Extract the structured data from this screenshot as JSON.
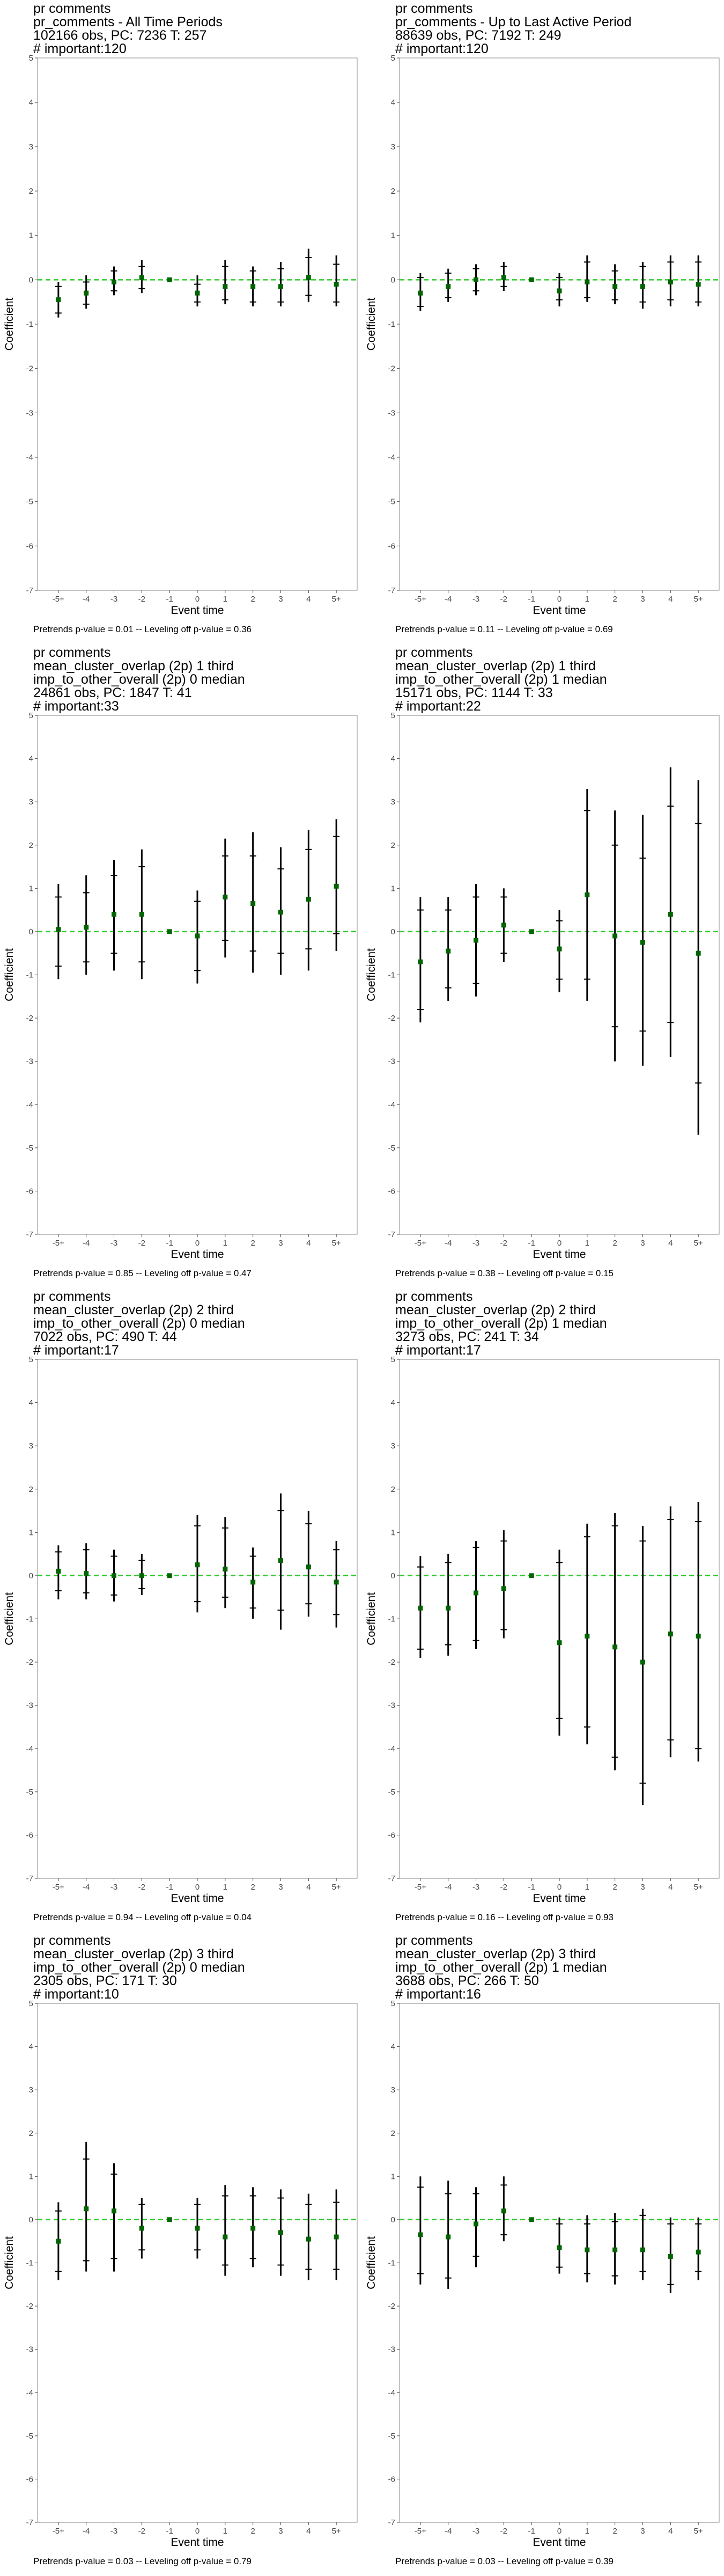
{
  "chart_data": [
    {
      "type": "scatter",
      "title_lines": [
        "pr comments",
        "pr_comments - All Time Periods",
        "102166 obs, PC: 7236 T: 257",
        "# important:120"
      ],
      "xlabel": "Event time",
      "ylabel": "Coefficient",
      "categories": [
        "-5+",
        "-4",
        "-3",
        "-2",
        "-1",
        "0",
        "1",
        "2",
        "3",
        "4",
        "5+"
      ],
      "ylim": [
        -7,
        5
      ],
      "yticks": [
        -7,
        -6,
        -5,
        -4,
        -3,
        -2,
        -1,
        0,
        1,
        2,
        3,
        4,
        5
      ],
      "reference_line": 0,
      "points": [
        -0.45,
        -0.3,
        -0.05,
        0.05,
        0,
        -0.3,
        -0.15,
        -0.15,
        -0.15,
        0.05,
        -0.1
      ],
      "ci_low": [
        -0.85,
        -0.65,
        -0.35,
        -0.3,
        0,
        -0.6,
        -0.55,
        -0.6,
        -0.6,
        -0.5,
        -0.6
      ],
      "ci_high": [
        -0.05,
        0.1,
        0.3,
        0.45,
        0,
        0.1,
        0.45,
        0.3,
        0.4,
        0.7,
        0.55
      ],
      "inner_low": [
        -0.75,
        -0.55,
        -0.25,
        -0.2,
        0,
        -0.5,
        -0.45,
        -0.5,
        -0.5,
        -0.35,
        -0.5
      ],
      "inner_high": [
        -0.15,
        -0.05,
        0.2,
        0.3,
        0,
        -0.1,
        0.3,
        0.2,
        0.25,
        0.5,
        0.35
      ],
      "note": "Pretrends p-value = 0.01 -- Leveling off p-value = 0.36"
    },
    {
      "type": "scatter",
      "title_lines": [
        "pr comments",
        "pr_comments - Up to Last Active Period",
        "88639 obs, PC: 7192 T: 249",
        "# important:120"
      ],
      "xlabel": "Event time",
      "ylabel": "Coefficient",
      "categories": [
        "-5+",
        "-4",
        "-3",
        "-2",
        "-1",
        "0",
        "1",
        "2",
        "3",
        "4",
        "5+"
      ],
      "ylim": [
        -7,
        5
      ],
      "yticks": [
        -7,
        -6,
        -5,
        -4,
        -3,
        -2,
        -1,
        0,
        1,
        2,
        3,
        4,
        5
      ],
      "reference_line": 0,
      "points": [
        -0.3,
        -0.15,
        0,
        0.05,
        0,
        -0.25,
        -0.05,
        -0.15,
        -0.15,
        -0.05,
        -0.1
      ],
      "ci_low": [
        -0.7,
        -0.5,
        -0.35,
        -0.25,
        0,
        -0.6,
        -0.5,
        -0.55,
        -0.65,
        -0.6,
        -0.6
      ],
      "ci_high": [
        0.15,
        0.25,
        0.35,
        0.4,
        0,
        0.15,
        0.55,
        0.35,
        0.4,
        0.55,
        0.55
      ],
      "inner_low": [
        -0.6,
        -0.4,
        -0.25,
        -0.15,
        0,
        -0.45,
        -0.4,
        -0.45,
        -0.5,
        -0.45,
        -0.5
      ],
      "inner_high": [
        0.05,
        0.15,
        0.25,
        0.3,
        0,
        0.05,
        0.4,
        0.2,
        0.3,
        0.4,
        0.4
      ],
      "note": "Pretrends p-value = 0.11 -- Leveling off p-value = 0.69"
    },
    {
      "type": "scatter",
      "title_lines": [
        "pr comments",
        "mean_cluster_overlap (2p) 1 third",
        "imp_to_other_overall (2p) 0 median",
        "24861 obs, PC: 1847 T: 41",
        "# important:33"
      ],
      "xlabel": "Event time",
      "ylabel": "Coefficient",
      "categories": [
        "-5+",
        "-4",
        "-3",
        "-2",
        "-1",
        "0",
        "1",
        "2",
        "3",
        "4",
        "5+"
      ],
      "ylim": [
        -7,
        5
      ],
      "yticks": [
        -7,
        -6,
        -5,
        -4,
        -3,
        -2,
        -1,
        0,
        1,
        2,
        3,
        4,
        5
      ],
      "reference_line": 0,
      "points": [
        0.05,
        0.1,
        0.4,
        0.4,
        0,
        -0.1,
        0.8,
        0.65,
        0.45,
        0.75,
        1.05
      ],
      "ci_low": [
        -1.1,
        -1.0,
        -0.9,
        -1.1,
        0,
        -1.2,
        -0.6,
        -0.95,
        -1.0,
        -0.9,
        -0.45
      ],
      "ci_high": [
        1.1,
        1.3,
        1.65,
        1.9,
        0,
        0.95,
        2.15,
        2.3,
        1.95,
        2.35,
        2.6
      ],
      "inner_low": [
        -0.8,
        -0.7,
        -0.5,
        -0.7,
        0,
        -0.9,
        -0.2,
        -0.45,
        -0.5,
        -0.4,
        -0.05
      ],
      "inner_high": [
        0.8,
        0.9,
        1.3,
        1.5,
        0,
        0.7,
        1.75,
        1.75,
        1.45,
        1.9,
        2.2
      ],
      "note": "Pretrends p-value = 0.85 -- Leveling off p-value = 0.47"
    },
    {
      "type": "scatter",
      "title_lines": [
        "pr comments",
        "mean_cluster_overlap (2p) 1 third",
        "imp_to_other_overall (2p) 1 median",
        "15171 obs, PC: 1144 T: 33",
        "# important:22"
      ],
      "xlabel": "Event time",
      "ylabel": "Coefficient",
      "categories": [
        "-5+",
        "-4",
        "-3",
        "-2",
        "-1",
        "0",
        "1",
        "2",
        "3",
        "4",
        "5+"
      ],
      "ylim": [
        -7,
        5
      ],
      "yticks": [
        -7,
        -6,
        -5,
        -4,
        -3,
        -2,
        -1,
        0,
        1,
        2,
        3,
        4,
        5
      ],
      "reference_line": 0,
      "points": [
        -0.7,
        -0.45,
        -0.2,
        0.15,
        0,
        -0.4,
        0.85,
        -0.1,
        -0.25,
        0.4,
        -0.5
      ],
      "ci_low": [
        -2.1,
        -1.6,
        -1.5,
        -0.7,
        0,
        -1.4,
        -1.6,
        -3.0,
        -3.1,
        -2.9,
        -4.7
      ],
      "ci_high": [
        0.8,
        0.8,
        1.1,
        1.0,
        0,
        0.5,
        3.3,
        2.8,
        2.7,
        3.8,
        3.5
      ],
      "inner_low": [
        -1.8,
        -1.3,
        -1.2,
        -0.5,
        0,
        -1.1,
        -1.1,
        -2.2,
        -2.3,
        -2.1,
        -3.5
      ],
      "inner_high": [
        0.5,
        0.5,
        0.8,
        0.8,
        0,
        0.25,
        2.8,
        2.0,
        1.7,
        2.9,
        2.5
      ],
      "note": "Pretrends p-value = 0.38 -- Leveling off p-value = 0.15"
    },
    {
      "type": "scatter",
      "title_lines": [
        "pr comments",
        "mean_cluster_overlap (2p) 2 third",
        "imp_to_other_overall (2p) 0 median",
        "7022 obs, PC: 490 T: 44",
        "# important:17"
      ],
      "xlabel": "Event time",
      "ylabel": "Coefficient",
      "categories": [
        "-5+",
        "-4",
        "-3",
        "-2",
        "-1",
        "0",
        "1",
        "2",
        "3",
        "4",
        "5+"
      ],
      "ylim": [
        -7,
        5
      ],
      "yticks": [
        -7,
        -6,
        -5,
        -4,
        -3,
        -2,
        -1,
        0,
        1,
        2,
        3,
        4,
        5
      ],
      "reference_line": 0,
      "points": [
        0.1,
        0.05,
        0.0,
        0.0,
        0,
        0.25,
        0.15,
        -0.15,
        0.35,
        0.2,
        -0.15
      ],
      "ci_low": [
        -0.55,
        -0.55,
        -0.6,
        -0.45,
        0,
        -0.85,
        -0.75,
        -1.0,
        -1.25,
        -0.95,
        -1.2
      ],
      "ci_high": [
        0.7,
        0.75,
        0.6,
        0.5,
        0,
        1.4,
        1.35,
        0.65,
        1.9,
        1.5,
        0.8
      ],
      "inner_low": [
        -0.35,
        -0.4,
        -0.45,
        -0.3,
        0,
        -0.6,
        -0.5,
        -0.75,
        -0.8,
        -0.65,
        -0.9
      ],
      "inner_high": [
        0.55,
        0.6,
        0.45,
        0.35,
        0,
        1.15,
        1.1,
        0.45,
        1.5,
        1.2,
        0.6
      ],
      "note": "Pretrends p-value = 0.94 -- Leveling off p-value = 0.04"
    },
    {
      "type": "scatter",
      "title_lines": [
        "pr comments",
        "mean_cluster_overlap (2p) 2 third",
        "imp_to_other_overall (2p) 1 median",
        "3273 obs, PC: 241 T: 34",
        "# important:17"
      ],
      "xlabel": "Event time",
      "ylabel": "Coefficient",
      "categories": [
        "-5+",
        "-4",
        "-3",
        "-2",
        "-1",
        "0",
        "1",
        "2",
        "3",
        "4",
        "5+"
      ],
      "ylim": [
        -7,
        5
      ],
      "yticks": [
        -7,
        -6,
        -5,
        -4,
        -3,
        -2,
        -1,
        0,
        1,
        2,
        3,
        4,
        5
      ],
      "reference_line": 0,
      "points": [
        -0.75,
        -0.75,
        -0.4,
        -0.3,
        0,
        -1.55,
        -1.4,
        -1.65,
        -2.0,
        -1.35,
        -1.4
      ],
      "ci_low": [
        -1.9,
        -1.85,
        -1.7,
        -1.45,
        0,
        -3.7,
        -3.9,
        -4.5,
        -5.3,
        -4.2,
        -4.3
      ],
      "ci_high": [
        0.45,
        0.5,
        0.8,
        1.05,
        0,
        0.6,
        1.2,
        1.45,
        1.15,
        1.6,
        1.7
      ],
      "inner_low": [
        -1.7,
        -1.6,
        -1.5,
        -1.25,
        0,
        -3.3,
        -3.5,
        -4.2,
        -4.8,
        -3.8,
        -4.0
      ],
      "inner_high": [
        0.2,
        0.3,
        0.65,
        0.8,
        0,
        0.3,
        0.9,
        1.15,
        0.8,
        1.3,
        1.25
      ],
      "note": "Pretrends p-value = 0.16 -- Leveling off p-value = 0.93"
    },
    {
      "type": "scatter",
      "title_lines": [
        "pr comments",
        "mean_cluster_overlap (2p) 3 third",
        "imp_to_other_overall (2p) 0 median",
        "2305 obs, PC: 171 T: 30",
        "# important:10"
      ],
      "xlabel": "Event time",
      "ylabel": "Coefficient",
      "categories": [
        "-5+",
        "-4",
        "-3",
        "-2",
        "-1",
        "0",
        "1",
        "2",
        "3",
        "4",
        "5+"
      ],
      "ylim": [
        -7,
        5
      ],
      "yticks": [
        -7,
        -6,
        -5,
        -4,
        -3,
        -2,
        -1,
        0,
        1,
        2,
        3,
        4,
        5
      ],
      "reference_line": 0,
      "points": [
        -0.5,
        0.25,
        0.2,
        -0.2,
        0,
        -0.2,
        -0.4,
        -0.2,
        -0.3,
        -0.45,
        -0.4
      ],
      "ci_low": [
        -1.4,
        -1.2,
        -1.2,
        -0.9,
        0,
        -0.9,
        -1.3,
        -1.1,
        -1.3,
        -1.4,
        -1.4
      ],
      "ci_high": [
        0.4,
        1.8,
        1.3,
        0.5,
        0,
        0.5,
        0.8,
        0.75,
        0.7,
        0.6,
        0.7
      ],
      "inner_low": [
        -1.2,
        -0.95,
        -0.9,
        -0.7,
        0,
        -0.7,
        -1.05,
        -0.9,
        -1.05,
        -1.15,
        -1.15
      ],
      "inner_high": [
        0.2,
        1.4,
        1.05,
        0.35,
        0,
        0.35,
        0.55,
        0.55,
        0.5,
        0.35,
        0.4
      ],
      "note": "Pretrends p-value = 0.03 -- Leveling off p-value = 0.79"
    },
    {
      "type": "scatter",
      "title_lines": [
        "pr comments",
        "mean_cluster_overlap (2p) 3 third",
        "imp_to_other_overall (2p) 1 median",
        "3688 obs, PC: 266 T: 50",
        "# important:16"
      ],
      "xlabel": "Event time",
      "ylabel": "Coefficient",
      "categories": [
        "-5+",
        "-4",
        "-3",
        "-2",
        "-1",
        "0",
        "1",
        "2",
        "3",
        "4",
        "5+"
      ],
      "ylim": [
        -7,
        5
      ],
      "yticks": [
        -7,
        -6,
        -5,
        -4,
        -3,
        -2,
        -1,
        0,
        1,
        2,
        3,
        4,
        5
      ],
      "reference_line": 0,
      "points": [
        -0.35,
        -0.4,
        -0.1,
        0.2,
        0,
        -0.65,
        -0.7,
        -0.7,
        -0.7,
        -0.85,
        -0.75
      ],
      "ci_low": [
        -1.5,
        -1.6,
        -1.1,
        -0.5,
        0,
        -1.25,
        -1.45,
        -1.5,
        -1.4,
        -1.7,
        -1.4
      ],
      "ci_high": [
        1.0,
        0.9,
        0.75,
        1.0,
        0,
        0.05,
        0.1,
        0.15,
        0.25,
        0.05,
        0.05
      ],
      "inner_low": [
        -1.25,
        -1.35,
        -0.85,
        -0.35,
        0,
        -1.1,
        -1.25,
        -1.3,
        -1.2,
        -1.5,
        -1.2
      ],
      "inner_high": [
        0.75,
        0.6,
        0.6,
        0.8,
        0,
        -0.1,
        -0.1,
        -0.05,
        0.1,
        -0.1,
        -0.1
      ],
      "note": "Pretrends p-value = 0.03 -- Leveling off p-value = 0.39"
    }
  ],
  "colors": {
    "point": "#006400",
    "reference_line": "#33cc33",
    "ci": "#000000",
    "axis_text": "#444444"
  }
}
